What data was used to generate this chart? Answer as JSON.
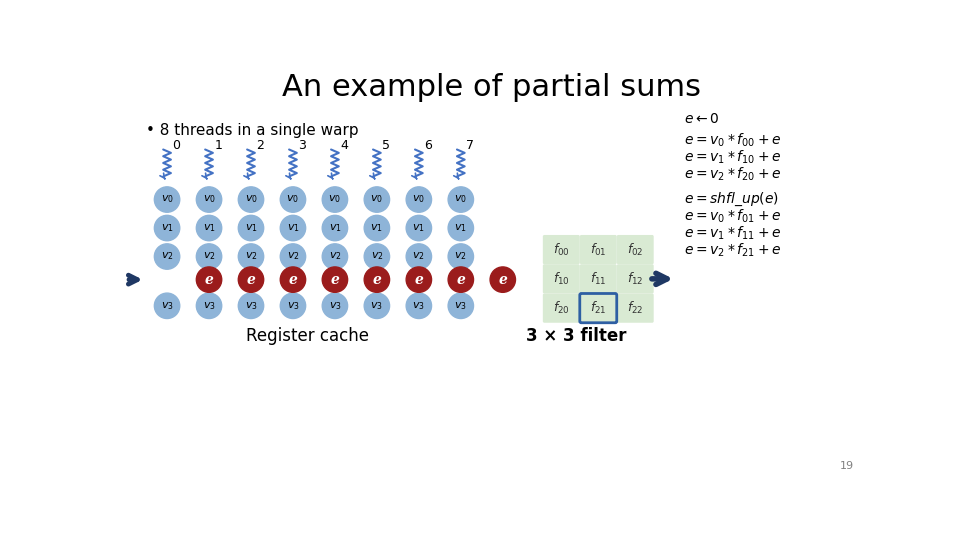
{
  "title": "An example of partial sums",
  "bullet": "• 8 threads in a single warp",
  "thread_labels": [
    "0",
    "1",
    "2",
    "3",
    "4",
    "5",
    "6",
    "7"
  ],
  "blue_circle_color": "#8EB4D8",
  "red_circle_color": "#9B1C1C",
  "thread_color": "#4472C4",
  "arrow_color": "#1F3864",
  "filter_bg": "#D9EAD3",
  "highlight_border": "#2E5FA3",
  "filter_cells": [
    [
      "f_{00}",
      "f_{01}",
      "f_{02}"
    ],
    [
      "f_{10}",
      "f_{11}",
      "f_{12}"
    ],
    [
      "f_{20}",
      "f_{21}",
      "f_{22}"
    ]
  ],
  "highlight_cell": [
    2,
    1
  ],
  "page_number": "19",
  "bg_color": "#FFFFFF",
  "register_cache_label": "Register cache",
  "filter_label": "3 × 3 filter"
}
